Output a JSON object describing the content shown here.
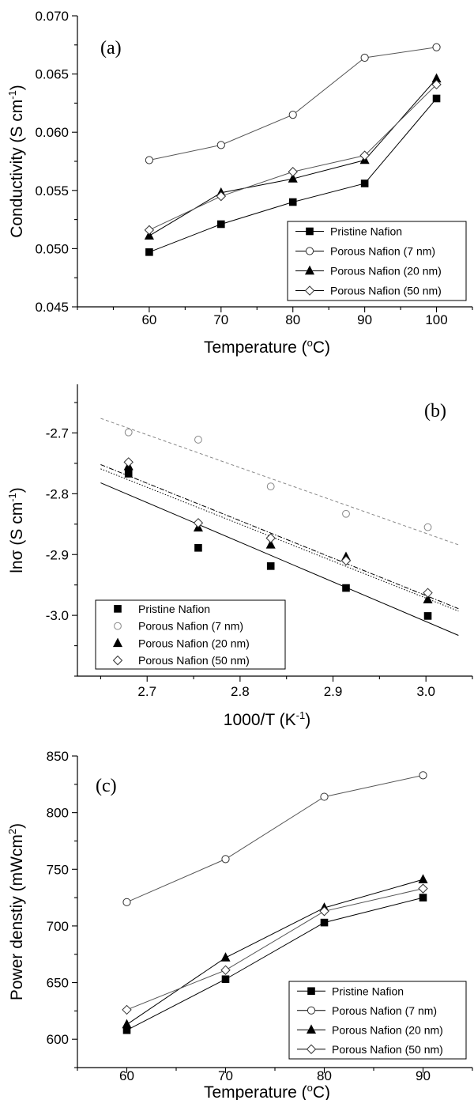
{
  "chart_data": [
    {
      "panel": "(a)",
      "type": "line",
      "xlabel_main": "Temperature (",
      "xlabel_sup": "o",
      "xlabel_tail": "C)",
      "ylabel_main": "Conductivity (S cm",
      "ylabel_sup": "-1",
      "ylabel_tail": ")",
      "x": [
        60,
        70,
        80,
        90,
        100
      ],
      "xticks": [
        60,
        70,
        80,
        90,
        100
      ],
      "xtick_labels": [
        "60",
        "70",
        "80",
        "90",
        "100"
      ],
      "yticks": [
        0.045,
        0.05,
        0.055,
        0.06,
        0.065,
        0.07
      ],
      "ytick_labels": [
        "0.045",
        "0.050",
        "0.055",
        "0.060",
        "0.065",
        "0.070"
      ],
      "xlim": [
        50,
        105
      ],
      "ylim": [
        0.045,
        0.07
      ],
      "legend_position": "lower-right",
      "series": [
        {
          "name": "Pristine Nafion",
          "marker": "square-filled",
          "values": [
            0.0497,
            0.0521,
            0.054,
            0.0556,
            0.0629
          ]
        },
        {
          "name": "Porous Nafion (7 nm)",
          "marker": "circle-open",
          "values": [
            0.0576,
            0.0589,
            0.0615,
            0.0664,
            0.0673
          ]
        },
        {
          "name": "Porous Nafion (20 nm)",
          "marker": "triangle-filled",
          "values": [
            0.0511,
            0.0548,
            0.056,
            0.0576,
            0.0646
          ]
        },
        {
          "name": "Porous Nafion (50 nm)",
          "marker": "diamond-open",
          "values": [
            0.0516,
            0.0545,
            0.0566,
            0.058,
            0.0641
          ]
        }
      ]
    },
    {
      "panel": "(b)",
      "type": "scatter",
      "xlabel_main": "1000/T (K",
      "xlabel_sup": "-1",
      "xlabel_tail": ")",
      "ylabel_main": "lnσ (S cm",
      "ylabel_sup": "-1",
      "ylabel_tail": ")",
      "x": [
        2.68,
        2.755,
        2.833,
        2.914,
        3.002
      ],
      "xticks": [
        2.7,
        2.8,
        2.9,
        3.0
      ],
      "xtick_labels": [
        "2.7",
        "2.8",
        "2.9",
        "3.0"
      ],
      "yticks": [
        -2.7,
        -2.8,
        -2.9,
        -3.0
      ],
      "ytick_labels": [
        "-2.7",
        "-2.8",
        "-2.9",
        "-3.0"
      ],
      "xlim": [
        2.625,
        3.05
      ],
      "ylim": [
        -3.1,
        -2.62
      ],
      "legend_position": "lower-left",
      "series": [
        {
          "name": "Pristine Nafion",
          "marker": "square-filled",
          "values": [
            -2.767,
            -2.889,
            -2.919,
            -2.955,
            -3.001
          ],
          "fit": [
            [
              2.65,
              -2.782
            ],
            [
              3.035,
              -3.033
            ]
          ],
          "fit_style": "solid"
        },
        {
          "name": "Porous Nafion (7 nm)",
          "marker": "circle-open-gray",
          "values": [
            -2.699,
            -2.711,
            -2.788,
            -2.833,
            -2.855
          ],
          "fit": [
            [
              2.65,
              -2.676
            ],
            [
              3.035,
              -2.884
            ]
          ],
          "fit_style": "dashed"
        },
        {
          "name": "Porous Nafion (20 nm)",
          "marker": "triangle-filled",
          "values": [
            -2.755,
            -2.856,
            -2.884,
            -2.904,
            -2.974
          ],
          "fit": [
            [
              2.65,
              -2.752
            ],
            [
              3.035,
              -2.989
            ]
          ],
          "fit_style": "dashdot"
        },
        {
          "name": "Porous Nafion (50 nm)",
          "marker": "diamond-open",
          "values": [
            -2.748,
            -2.848,
            -2.873,
            -2.91,
            -2.963
          ],
          "fit": [
            [
              2.65,
              -2.759
            ],
            [
              3.035,
              -2.993
            ]
          ],
          "fit_style": "dotted"
        }
      ]
    },
    {
      "panel": "(c)",
      "type": "line",
      "xlabel_main": "Temperature (",
      "xlabel_sup": "o",
      "xlabel_tail": "C)",
      "ylabel_main": "Power denstiy (mWcm",
      "ylabel_sup": "2",
      "ylabel_tail": ")",
      "x": [
        60,
        70,
        80,
        90
      ],
      "xticks": [
        60,
        70,
        80,
        90
      ],
      "xtick_labels": [
        "60",
        "70",
        "80",
        "90"
      ],
      "yticks": [
        600,
        650,
        700,
        750,
        800,
        850
      ],
      "ytick_labels": [
        "600",
        "650",
        "700",
        "750",
        "800",
        "850"
      ],
      "xlim": [
        55,
        95
      ],
      "ylim": [
        575,
        850
      ],
      "legend_position": "lower-right",
      "series": [
        {
          "name": "Pristine Nafion",
          "marker": "square-filled",
          "values": [
            608,
            653,
            703,
            725
          ]
        },
        {
          "name": "Porous Nafion (7 nm)",
          "marker": "circle-open",
          "values": [
            721,
            759,
            814,
            833
          ]
        },
        {
          "name": "Porous Nafion (20 nm)",
          "marker": "triangle-filled",
          "values": [
            613,
            672,
            716,
            741
          ]
        },
        {
          "name": "Porous Nafion (50 nm)",
          "marker": "diamond-open",
          "values": [
            626,
            661,
            713,
            733
          ]
        }
      ]
    }
  ]
}
